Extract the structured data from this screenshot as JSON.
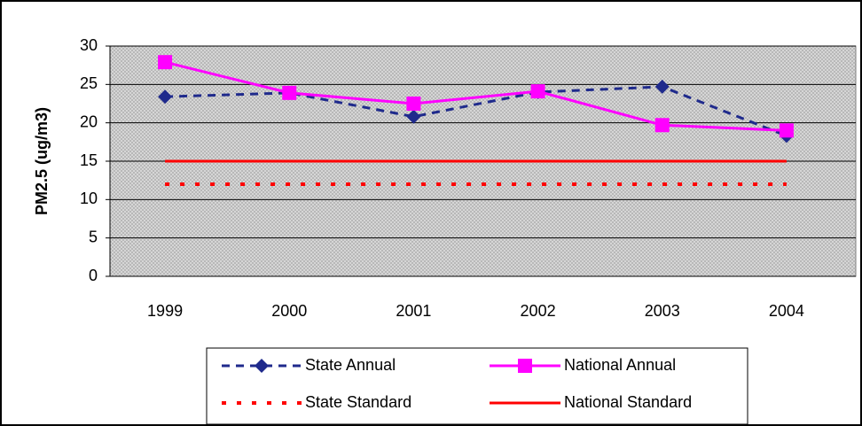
{
  "chart_data": {
    "type": "line",
    "y_label": "PM2.5 (ug/m3)",
    "categories": [
      "1999",
      "2000",
      "2001",
      "2002",
      "2003",
      "2004"
    ],
    "series": [
      {
        "name": "State Annual",
        "color": "#1f2a8c",
        "line_style": "dashed",
        "marker": "diamond",
        "values": [
          23.4,
          23.9,
          20.8,
          24.0,
          24.7,
          18.3
        ]
      },
      {
        "name": "National Annual",
        "color": "#ff00ff",
        "line_style": "solid",
        "marker": "square",
        "values": [
          27.9,
          23.9,
          22.5,
          24.1,
          19.7,
          19.0
        ]
      },
      {
        "name": "State Standard",
        "color": "#ff0000",
        "line_style": "dotted",
        "marker": "none",
        "values": [
          12,
          12,
          12,
          12,
          12,
          12
        ]
      },
      {
        "name": "National Standard",
        "color": "#ff0000",
        "line_style": "solid",
        "marker": "none",
        "values": [
          15,
          15,
          15,
          15,
          15,
          15
        ]
      }
    ],
    "ylim": [
      0,
      30
    ],
    "yticks": [
      0,
      5,
      10,
      15,
      20,
      25,
      30
    ],
    "grid": true,
    "legend": "bottom"
  }
}
